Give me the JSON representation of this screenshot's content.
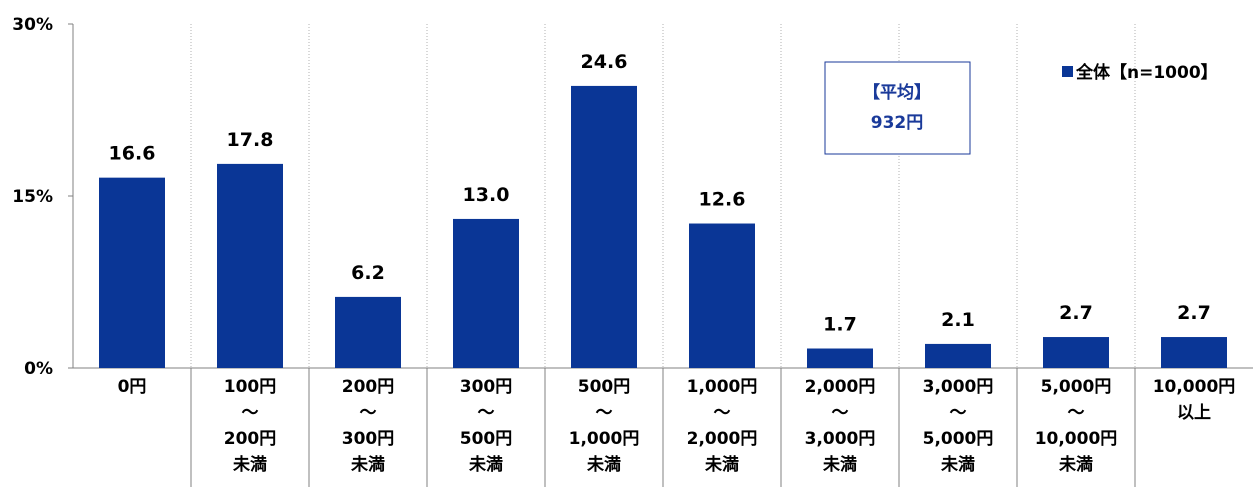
{
  "chart_data": {
    "type": "bar",
    "categories": [
      [
        "0円"
      ],
      [
        "100円",
        "～",
        "200円",
        "未満"
      ],
      [
        "200円",
        "～",
        "300円",
        "未満"
      ],
      [
        "300円",
        "～",
        "500円",
        "未満"
      ],
      [
        "500円",
        "～",
        "1,000円",
        "未満"
      ],
      [
        "1,000円",
        "～",
        "2,000円",
        "未満"
      ],
      [
        "2,000円",
        "～",
        "3,000円",
        "未満"
      ],
      [
        "3,000円",
        "～",
        "5,000円",
        "未満"
      ],
      [
        "5,000円",
        "～",
        "10,000円",
        "未満"
      ],
      [
        "10,000円",
        "以上"
      ]
    ],
    "series": [
      {
        "name": "全体【n=1000】",
        "values": [
          16.6,
          17.8,
          6.2,
          13.0,
          24.6,
          12.6,
          1.7,
          2.1,
          2.7,
          2.7
        ]
      }
    ],
    "value_labels": [
      "16.6",
      "17.8",
      "6.2",
      "13.0",
      "24.6",
      "12.6",
      "1.7",
      "2.1",
      "2.7",
      "2.7"
    ],
    "ylim": [
      0,
      30
    ],
    "yticks": [
      {
        "value": 0,
        "label": "0%"
      },
      {
        "value": 15,
        "label": "15%"
      },
      {
        "value": 30,
        "label": "30%"
      }
    ],
    "grid": "vertical-dotted",
    "legend": {
      "position": "top-right",
      "label": "全体【n=1000】"
    },
    "annotation": {
      "line1": "【平均】",
      "line2": "932円"
    },
    "colors": {
      "bar": "#0a3696",
      "axis": "#808080",
      "grid": "#b0b0b0",
      "annotation": "#1a3a9a"
    }
  }
}
